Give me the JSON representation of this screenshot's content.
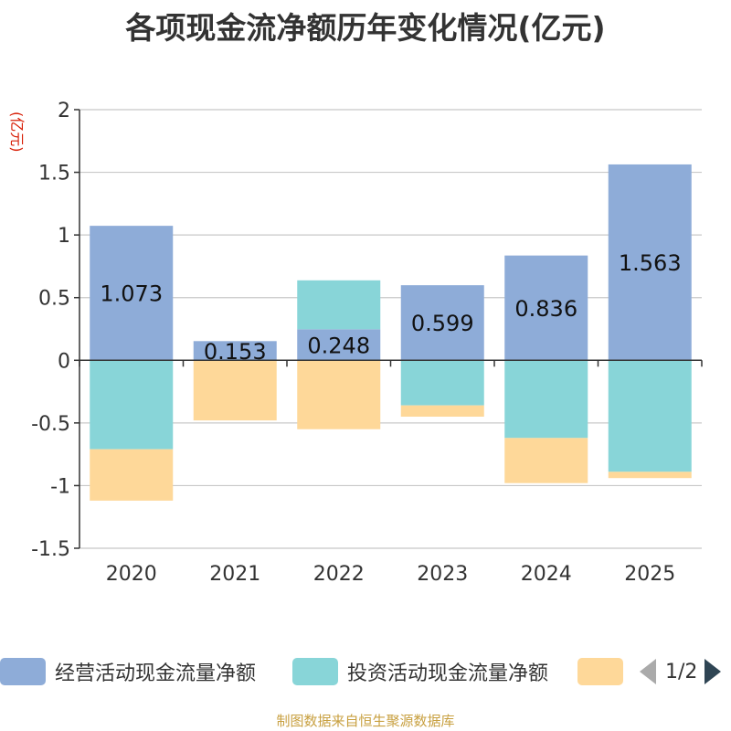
{
  "chart_data": {
    "type": "bar",
    "stacked": true,
    "title": "各项现金流净额历年变化情况(亿元)",
    "ylabel": "(亿元)",
    "ylim": [
      -1.5,
      2
    ],
    "yticks": [
      -1.5,
      -1,
      -0.5,
      0,
      0.5,
      1,
      1.5,
      2
    ],
    "ytick_labels": [
      "-1.5",
      "-1",
      "-0.5",
      "0",
      "0.5",
      "1",
      "1.5",
      "2"
    ],
    "categories": [
      "2020",
      "2021",
      "2022",
      "2023",
      "2024",
      "2025"
    ],
    "series": [
      {
        "name": "经营活动现金流量净额",
        "color": "#8eacd8",
        "values": [
          1.073,
          0.153,
          0.248,
          0.599,
          0.836,
          1.563
        ],
        "labels": [
          "1.073",
          "0.153",
          "0.248",
          "0.599",
          "0.836",
          "1.563"
        ]
      },
      {
        "name": "投资活动现金流量净额",
        "color": "#88d5d8",
        "values": [
          -0.71,
          0,
          0.39,
          -0.36,
          -0.62,
          -0.89
        ]
      },
      {
        "name": "",
        "color": "#fed899",
        "values": [
          -0.41,
          -0.48,
          -0.55,
          -0.09,
          -0.36,
          -0.05
        ]
      }
    ],
    "grid": true,
    "legend_position": "bottom"
  },
  "legend": {
    "items": [
      {
        "label": "经营活动现金流量净额",
        "color": "#8eacd8"
      },
      {
        "label": "投资活动现金流量净额",
        "color": "#88d5d8"
      },
      {
        "label": "",
        "color": "#fed899"
      }
    ],
    "page": "1/2"
  },
  "footer": "制图数据来自恒生聚源数据库"
}
